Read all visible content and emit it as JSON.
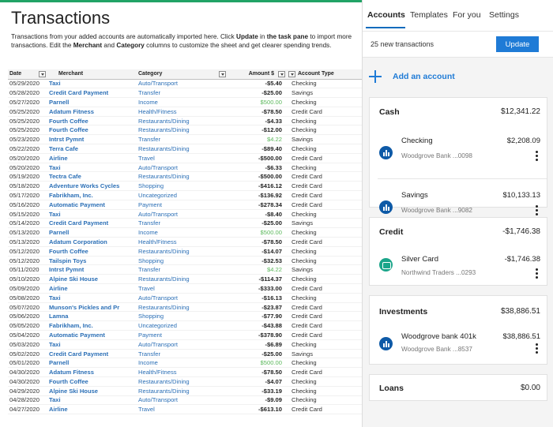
{
  "sheet": {
    "title": "Transactions",
    "description_parts": [
      "Transactions from your added accounts are automatically imported here. Click ",
      "Update",
      " in ",
      "the task pane",
      " to import more transactions. Edit the ",
      "Merchant",
      " and ",
      "Category",
      " columns to customize the sheet and get clearer spending trends."
    ],
    "columns": [
      "Date",
      "Merchant",
      "Category",
      "Amount $",
      "Account Type"
    ],
    "rows": [
      [
        "05/29/2020",
        "Taxi",
        "Auto/Transport",
        "-$5.40",
        "Checking"
      ],
      [
        "05/28/2020",
        "Credit Card Payment",
        "Transfer",
        "-$25.00",
        "Savings"
      ],
      [
        "05/27/2020",
        "Parnell",
        "Income",
        "$500.00",
        "Checking"
      ],
      [
        "05/25/2020",
        "Adatum Fitness",
        "Health/Fitness",
        "-$78.50",
        "Credit Card"
      ],
      [
        "05/25/2020",
        "Fourth Coffee",
        "Restaurants/Dining",
        "-$4.33",
        "Checking"
      ],
      [
        "05/25/2020",
        "Fourth Coffee",
        "Restaurants/Dining",
        "-$12.00",
        "Checking"
      ],
      [
        "05/23/2020",
        "Intrst Pymnt",
        "Transfer",
        "$4.22",
        "Savings"
      ],
      [
        "05/22/2020",
        "Terra Cafe",
        "Restaurants/Dining",
        "-$89.40",
        "Checking"
      ],
      [
        "05/20/2020",
        "Airline",
        "Travel",
        "-$500.00",
        "Credit Card"
      ],
      [
        "05/20/2020",
        "Taxi",
        "Auto/Transport",
        "-$6.33",
        "Checking"
      ],
      [
        "05/19/2020",
        "Tectra Cafe",
        "Restaurants/Dining",
        "-$500.00",
        "Credit Card"
      ],
      [
        "05/18/2020",
        "Adventure Works Cycles",
        "Shopping",
        "-$416.12",
        "Credit Card"
      ],
      [
        "05/17/2020",
        "Fabrikham, Inc.",
        "Uncategorized",
        "-$136.92",
        "Credit Card"
      ],
      [
        "05/16/2020",
        "Automatic Payment",
        "Payment",
        "-$278.34",
        "Credit Card"
      ],
      [
        "05/15/2020",
        "Taxi",
        "Auto/Transport",
        "-$8.40",
        "Checking"
      ],
      [
        "05/14/2020",
        "Credit Card Payment",
        "Transfer",
        "-$25.00",
        "Savings"
      ],
      [
        "05/13/2020",
        "Parnell",
        "Income",
        "$500.00",
        "Checking"
      ],
      [
        "05/13/2020",
        "Adatum Corporation",
        "Health/Fitness",
        "-$78.50",
        "Credit Card"
      ],
      [
        "05/12/2020",
        "Fourth Coffee",
        "Restaurants/Dining",
        "-$14.07",
        "Checking"
      ],
      [
        "05/12/2020",
        "Tailspin Toys",
        "Shopping",
        "-$32.53",
        "Checking"
      ],
      [
        "05/11/2020",
        "Intrst Pymnt",
        "Transfer",
        "$4.22",
        "Savings"
      ],
      [
        "05/10/2020",
        "Alpine Ski House",
        "Restaurants/Dining",
        "-$114.37",
        "Checking"
      ],
      [
        "05/09/2020",
        "Airline",
        "Travel",
        "-$333.00",
        "Credit Card"
      ],
      [
        "05/08/2020",
        "Taxi",
        "Auto/Transport",
        "-$16.13",
        "Checking"
      ],
      [
        "05/07/2020",
        "Munson's Pickles and Pr",
        "Restaurants/Dining",
        "-$23.87",
        "Credit Card"
      ],
      [
        "05/06/2020",
        "Lamna",
        "Shopping",
        "-$77.90",
        "Credit Card"
      ],
      [
        "05/05/2020",
        "Fabrikham, Inc.",
        "Uncategorized",
        "-$43.88",
        "Credit Card"
      ],
      [
        "05/04/2020",
        "Automatic Payment",
        "Payment",
        "-$378.90",
        "Credit Card"
      ],
      [
        "05/03/2020",
        "Taxi",
        "Auto/Transport",
        "-$6.89",
        "Checking"
      ],
      [
        "05/02/2020",
        "Credit Card Payment",
        "Transfer",
        "-$25.00",
        "Savings"
      ],
      [
        "05/01/2020",
        "Parnell",
        "Income",
        "$500.00",
        "Checking"
      ],
      [
        "04/30/2020",
        "Adatum Fitness",
        "Health/Fitness",
        "-$78.50",
        "Credit Card"
      ],
      [
        "04/30/2020",
        "Fourth Coffee",
        "Restaurants/Dining",
        "-$4.07",
        "Checking"
      ],
      [
        "04/29/2020",
        "Alpine Ski House",
        "Restaurants/Dining",
        "-$33.19",
        "Checking"
      ],
      [
        "04/28/2020",
        "Taxi",
        "Auto/Transport",
        "-$9.09",
        "Checking"
      ],
      [
        "04/27/2020",
        "Airline",
        "Travel",
        "-$613.10",
        "Credit Card"
      ]
    ]
  },
  "pane": {
    "tabs": [
      "Accounts",
      "Templates",
      "For you",
      "Settings"
    ],
    "active_tab": "Accounts",
    "new_transactions": "25 new transactions",
    "update_label": "Update",
    "add_account_label": "Add an account",
    "groups": [
      {
        "name": "Cash",
        "total": "$12,341.22",
        "accounts": [
          {
            "name": "Checking",
            "institution": "Woodgrove Bank ...0098",
            "amount": "$2,208.09",
            "icon": "bank-icon"
          },
          {
            "name": "Savings",
            "institution": "Woodgrove Bank ...9082",
            "amount": "$10,133.13",
            "icon": "bank-icon"
          }
        ]
      },
      {
        "name": "Credit",
        "total": "-$1,746.38",
        "accounts": [
          {
            "name": "Silver Card",
            "institution": "Northwind Traders ...0293",
            "amount": "-$1,746.38",
            "icon": "card-icon"
          }
        ]
      },
      {
        "name": "Investments",
        "total": "$38,886.51",
        "accounts": [
          {
            "name": "Woodgrove bank 401k",
            "institution": "Woodgrove Bank ...8537",
            "amount": "$38,886.51",
            "icon": "bank-icon"
          }
        ]
      },
      {
        "name": "Loans",
        "total": "$0.00",
        "accounts": []
      }
    ]
  },
  "colors": {
    "accent_green": "#21a366",
    "link_blue": "#2b6fb6",
    "button_blue": "#1f7bd6",
    "positive_green": "#5cb85c",
    "bank_icon": "#0e5aa7",
    "card_icon": "#1ba58a"
  }
}
